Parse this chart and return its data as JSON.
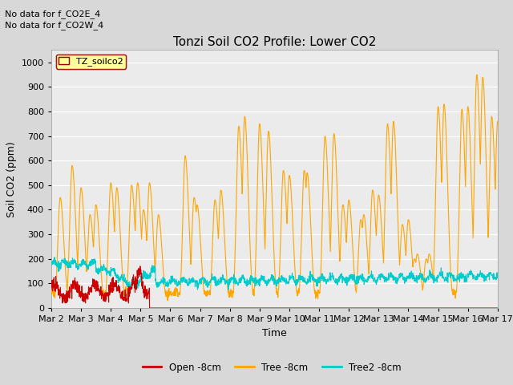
{
  "title": "Tonzi Soil CO2 Profile: Lower CO2",
  "xlabel": "Time",
  "ylabel": "Soil CO2 (ppm)",
  "annotations": [
    "No data for f_CO2E_4",
    "No data for f_CO2W_4"
  ],
  "legend_label": "TZ_soilco2",
  "ylim": [
    0,
    1050
  ],
  "yticks": [
    0,
    100,
    200,
    300,
    400,
    500,
    600,
    700,
    800,
    900,
    1000
  ],
  "xlim": [
    0,
    15
  ],
  "series": {
    "open": {
      "label": "Open -8cm",
      "color": "#cc0000"
    },
    "tree": {
      "label": "Tree -8cm",
      "color": "#ffa500"
    },
    "tree2": {
      "label": "Tree2 -8cm",
      "color": "#00cccc"
    }
  },
  "plot_bgcolor": "#ebebeb",
  "fig_bgcolor": "#d8d8d8",
  "grid_color": "#ffffff",
  "title_fontsize": 11,
  "axis_fontsize": 9,
  "tick_fontsize": 8,
  "annot_fontsize": 8
}
